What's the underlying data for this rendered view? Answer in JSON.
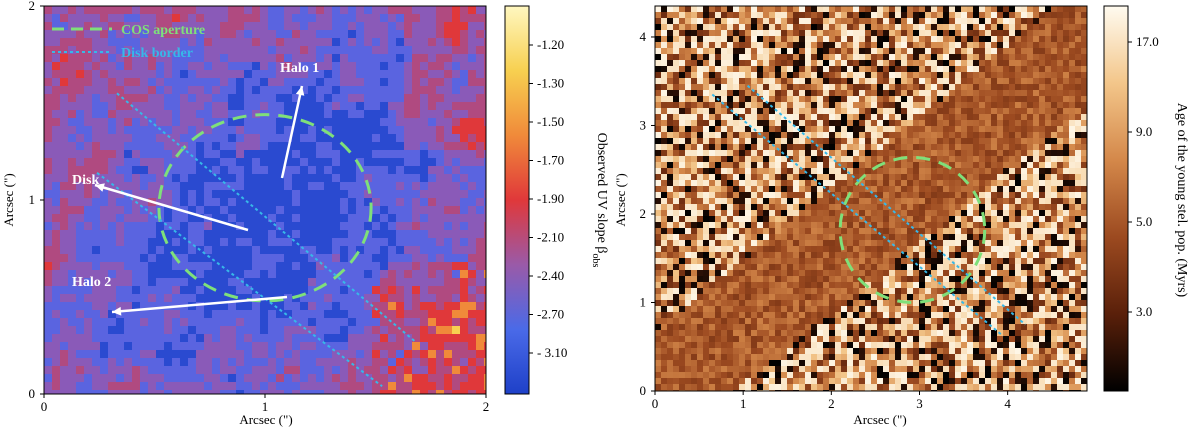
{
  "chart_data": [
    {
      "type": "heatmap",
      "xlabel": "Arcsec (\")",
      "ylabel": "Arcsec (\")",
      "xlim": [
        0,
        2
      ],
      "ylim": [
        0,
        2
      ],
      "xticks": [
        "0",
        "1",
        "2"
      ],
      "yticks": [
        "0",
        "1",
        "2"
      ],
      "colorbar": {
        "label": "Observed UV slope β",
        "label_sub": "obs",
        "ticks": [
          "-1.20",
          "-1.30",
          "-1.50",
          "-1.70",
          "-1.90",
          "-2.10",
          "-2.40",
          "-2.70",
          "- 3.10"
        ],
        "colors": [
          "#fff7c0",
          "#f7d050",
          "#f08a3a",
          "#e0383a",
          "#9a5aa8",
          "#4a6ae8",
          "#1e40c8"
        ]
      },
      "legend": {
        "placement": "top-left",
        "entries": [
          {
            "label": "COS aperture",
            "style": "dashed",
            "color": "#7fe07a"
          },
          {
            "label": "Disk border",
            "style": "dotted",
            "color": "#37b8e8"
          }
        ]
      },
      "annotations": [
        {
          "label": "Halo 1"
        },
        {
          "label": "Disk"
        },
        {
          "label": "Halo 2"
        }
      ],
      "aperture": {
        "center": [
          1.0,
          0.96
        ],
        "radius": 0.48
      },
      "disk_borders": [
        {
          "from": [
            0.33,
            1.55
          ],
          "to": [
            1.68,
            0.27
          ]
        },
        {
          "from": [
            0.24,
            1.14
          ],
          "to": [
            1.53,
            0.04
          ]
        }
      ]
    },
    {
      "type": "heatmap",
      "xlabel": "Arcsec (\")",
      "ylabel": "Arcsec (\")",
      "xlim": [
        0,
        4.9
      ],
      "ylim": [
        0,
        4.35
      ],
      "xticks": [
        "0",
        "1",
        "2",
        "3",
        "4"
      ],
      "yticks": [
        "0",
        "1",
        "2",
        "3",
        "4"
      ],
      "colorbar": {
        "label": "Age of the young stel. pop. (Myrs)",
        "ticks": [
          "17.0",
          "9.0",
          "5.0",
          "3.0"
        ],
        "colors": [
          "#fffbf0",
          "#f3c68a",
          "#d4884a",
          "#9c4a20",
          "#5a200a",
          "#000000"
        ]
      },
      "aperture": {
        "center": [
          2.92,
          1.82
        ],
        "radius": 0.82
      },
      "disk_borders": [
        {
          "from": [
            0.65,
            3.35
          ],
          "to": [
            3.95,
            0.62
          ]
        },
        {
          "from": [
            1.05,
            3.45
          ],
          "to": [
            4.2,
            0.75
          ]
        }
      ]
    }
  ]
}
